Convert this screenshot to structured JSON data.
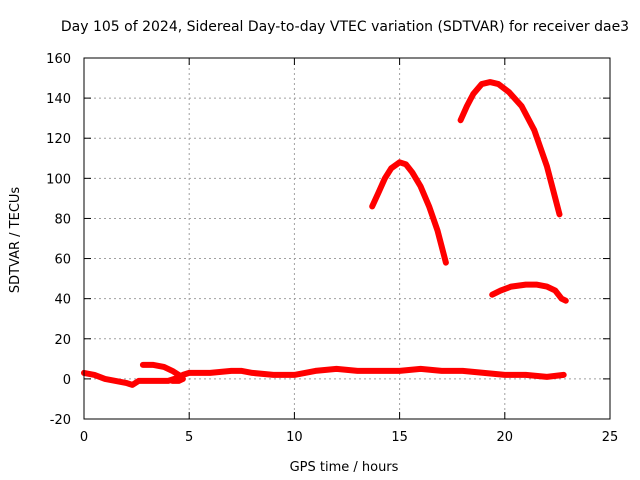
{
  "chart_data": {
    "type": "line",
    "title": "Day 105 of 2024, Sidereal Day-to-day VTEC variation (SDTVAR) for receiver dae3",
    "xlabel": "GPS time / hours",
    "ylabel": "SDTVAR / TECUs",
    "xlim": [
      0,
      25
    ],
    "ylim": [
      -20,
      160
    ],
    "xticks": [
      0,
      5,
      10,
      15,
      20,
      25
    ],
    "yticks": [
      -20,
      0,
      20,
      40,
      60,
      80,
      100,
      120,
      140,
      160
    ],
    "grid": true,
    "color": "#ff0000",
    "series": [
      {
        "name": "baseline",
        "points": [
          [
            0,
            3
          ],
          [
            0.5,
            2
          ],
          [
            1,
            0
          ],
          [
            1.5,
            -1
          ],
          [
            2,
            -2
          ],
          [
            2.3,
            -3
          ],
          [
            2.6,
            -1
          ],
          [
            3,
            -1
          ],
          [
            3.5,
            -1
          ],
          [
            4,
            -1
          ],
          [
            4.3,
            0
          ],
          [
            4.7,
            2
          ],
          [
            5,
            3
          ],
          [
            6,
            3
          ],
          [
            7,
            4
          ],
          [
            7.5,
            4
          ],
          [
            8,
            3
          ],
          [
            9,
            2
          ],
          [
            10,
            2
          ],
          [
            11,
            4
          ],
          [
            12,
            5
          ],
          [
            13,
            4
          ],
          [
            14,
            4
          ],
          [
            15,
            4
          ],
          [
            16,
            5
          ],
          [
            17,
            4
          ],
          [
            18,
            4
          ],
          [
            19,
            3
          ],
          [
            20,
            2
          ],
          [
            21,
            2
          ],
          [
            22,
            1
          ],
          [
            22.8,
            2
          ]
        ]
      },
      {
        "name": "segment-2-4h",
        "points": [
          [
            2.8,
            7
          ],
          [
            3.3,
            7
          ],
          [
            3.8,
            6
          ],
          [
            4.2,
            4
          ],
          [
            4.5,
            2
          ],
          [
            4.7,
            0
          ],
          [
            4.5,
            -1
          ],
          [
            4.2,
            -1
          ]
        ]
      },
      {
        "name": "arc-14-17h",
        "points": [
          [
            13.7,
            86
          ],
          [
            14,
            93
          ],
          [
            14.3,
            100
          ],
          [
            14.6,
            105
          ],
          [
            15,
            108
          ],
          [
            15.3,
            107
          ],
          [
            15.6,
            103
          ],
          [
            16,
            96
          ],
          [
            16.4,
            86
          ],
          [
            16.8,
            74
          ],
          [
            17.2,
            58
          ]
        ]
      },
      {
        "name": "arc-18-23h",
        "points": [
          [
            17.9,
            129
          ],
          [
            18.2,
            136
          ],
          [
            18.5,
            142
          ],
          [
            18.9,
            147
          ],
          [
            19.3,
            148
          ],
          [
            19.7,
            147
          ],
          [
            20.2,
            143
          ],
          [
            20.8,
            136
          ],
          [
            21.4,
            124
          ],
          [
            22,
            106
          ],
          [
            22.6,
            82
          ]
        ]
      },
      {
        "name": "arc-19-23h-low",
        "points": [
          [
            19.4,
            42
          ],
          [
            19.8,
            44
          ],
          [
            20.3,
            46
          ],
          [
            21,
            47
          ],
          [
            21.5,
            47
          ],
          [
            22,
            46
          ],
          [
            22.4,
            44
          ],
          [
            22.7,
            40
          ],
          [
            22.9,
            39
          ]
        ]
      }
    ]
  }
}
